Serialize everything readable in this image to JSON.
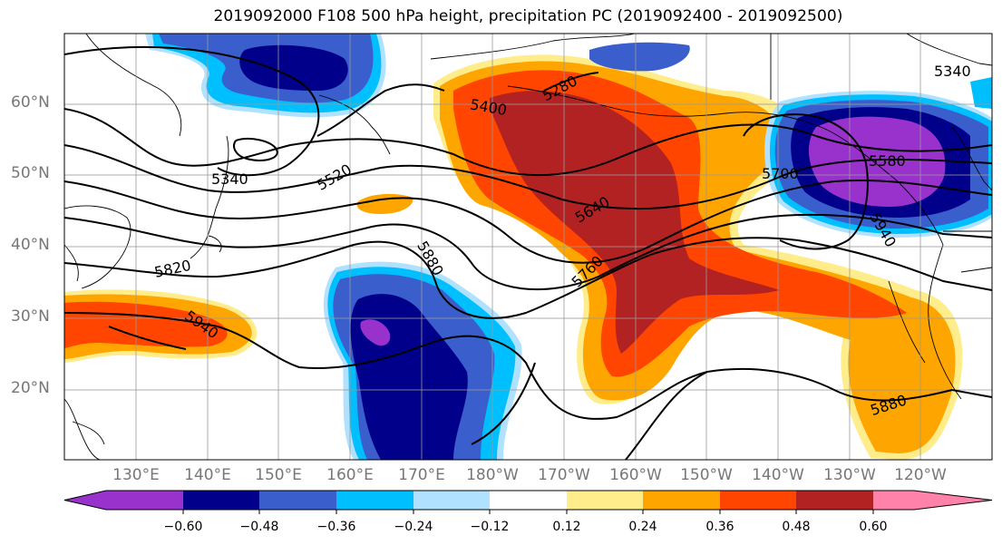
{
  "title": "2019092000 F108 500 hPa height, precipitation PC (2019092400 - 2019092500)",
  "map": {
    "latitude_labels": [
      "60°N",
      "50°N",
      "40°N",
      "30°N",
      "20°N"
    ],
    "longitude_labels": [
      "130°E",
      "140°E",
      "150°E",
      "160°E",
      "170°E",
      "180°W",
      "170°W",
      "160°W",
      "150°W",
      "140°W",
      "130°W",
      "120°W"
    ],
    "contour_labels": [
      "5280",
      "5340",
      "5340",
      "5400",
      "5520",
      "5640",
      "5700",
      "5760",
      "5820",
      "5880",
      "5880",
      "5940",
      "5940",
      "5580"
    ],
    "contour_color": "#000000",
    "grid": true
  },
  "colorbar": {
    "tick_labels": [
      "−0.60",
      "−0.48",
      "−0.36",
      "−0.24",
      "−0.12",
      "0.12",
      "0.24",
      "0.36",
      "0.48",
      "0.60"
    ],
    "colors": [
      "#9932cc",
      "#00008b",
      "#3a5fcd",
      "#00bfff",
      "#b0e2ff",
      "#ffffff",
      "#ffec8b",
      "#ffa500",
      "#ff4500",
      "#b22222",
      "#ff82ab"
    ]
  }
}
